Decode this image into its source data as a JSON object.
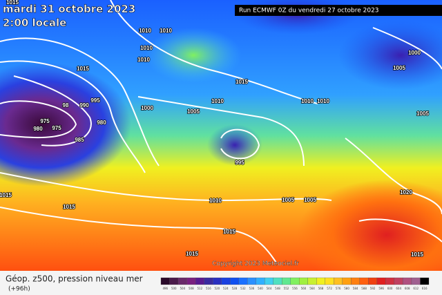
{
  "header": {
    "date": "mardi 31 octobre 2023",
    "time": "2:00 locale",
    "run": "Run ECMWF 0Z du vendredi 27 octobre 2023",
    "copyright": "Copyright 2023 Meteociel.fr"
  },
  "isobar_labels": [
    1015,
    1010,
    1010,
    1010,
    1010,
    1015,
    995,
    990,
    98,
    975,
    980,
    975,
    980,
    985,
    1000,
    1005,
    1010,
    1015,
    1000,
    1005,
    1010,
    1010,
    1005,
    995,
    1015,
    1015,
    1010,
    1005,
    1005,
    1020,
    1015,
    1015,
    1015
  ],
  "legend": {
    "title": "Géop. z500, pression niveau mer",
    "subtitle": "(+96h)",
    "scale": [
      496,
      500,
      504,
      508,
      512,
      516,
      520,
      524,
      528,
      532,
      536,
      540,
      544,
      548,
      552,
      556,
      560,
      564,
      568,
      572,
      576,
      580,
      584,
      588,
      592,
      596,
      600,
      604,
      608,
      612,
      616
    ],
    "colors": [
      "#2a0a2a",
      "#4a1a4a",
      "#6a2a6a",
      "#7a2080",
      "#5a1a90",
      "#3a2aa0",
      "#2a30c0",
      "#1a40e0",
      "#1050f0",
      "#1a70ff",
      "#2a90ff",
      "#30b0ff",
      "#40d0f0",
      "#50e0c0",
      "#60e890",
      "#80f060",
      "#a0f040",
      "#c8f030",
      "#f0f020",
      "#ffe020",
      "#ffc020",
      "#ffa010",
      "#ff8010",
      "#ff6010",
      "#f04010",
      "#e02020",
      "#d03040",
      "#c04060",
      "#b05080",
      "#a06090",
      "#000000"
    ]
  }
}
